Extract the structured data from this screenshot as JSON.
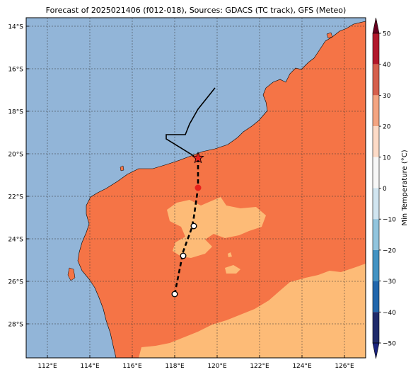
{
  "title": "Forecast of 2025021406 (f012-018), Sources: GDACS (TC track), GFS (Meteo)",
  "colorbar": {
    "label": "Min Temperature (°C)",
    "ticks": [
      "50",
      "40",
      "30",
      "20",
      "10",
      "0",
      "−10",
      "−20",
      "−30",
      "−40",
      "−50"
    ],
    "bands": [
      "#67001f",
      "#b2182b",
      "#d6604d",
      "#f4a582",
      "#fddbc7",
      "#f7f7f7",
      "#d1e5f0",
      "#92c5de",
      "#4393c3",
      "#2166ac",
      "#1f2a6b",
      "#1a237e"
    ]
  },
  "map": {
    "lat_labels": [
      "14°S",
      "16°S",
      "18°S",
      "20°S",
      "22°S",
      "24°S",
      "26°S",
      "28°S"
    ],
    "lon_labels": [
      "112°E",
      "114°E",
      "116°E",
      "118°E",
      "120°E",
      "122°E",
      "124°E",
      "126°E"
    ]
  },
  "colors": {
    "ocean": "#92b5d8",
    "land_warm": "#f57446",
    "land_cool": "#fdbb77",
    "track": "#000000",
    "current_position": "#e8211c"
  },
  "cyclone_track": {
    "past_track": [
      [
        119.9,
        -16.9
      ],
      [
        119.1,
        -17.9
      ],
      [
        118.7,
        -18.6
      ],
      [
        118.5,
        -19.1
      ],
      [
        117.6,
        -19.1
      ],
      [
        117.6,
        -19.3
      ],
      [
        118.9,
        -20.1
      ]
    ],
    "current_position": [
      119.1,
      -20.2
    ],
    "forecast_track": [
      [
        119.1,
        -20.2
      ],
      [
        119.1,
        -21.6
      ],
      [
        118.9,
        -23.0
      ],
      [
        118.8,
        -23.5
      ],
      [
        118.4,
        -24.6
      ],
      [
        118.0,
        -26.6
      ]
    ],
    "forecast_points": [
      [
        119.1,
        -21.6
      ],
      [
        118.9,
        -23.4
      ],
      [
        118.4,
        -24.8
      ],
      [
        118.0,
        -26.6
      ]
    ]
  }
}
